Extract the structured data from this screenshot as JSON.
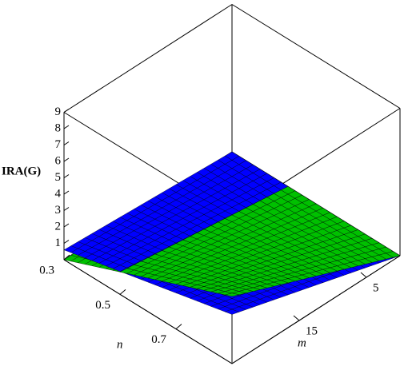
{
  "chart_data": {
    "type": "surface3d",
    "zlabel": "IRA(G)",
    "xlabel": "n",
    "ylabel": "m",
    "xlim": [
      0.3,
      0.9
    ],
    "ylim": [
      0,
      25
    ],
    "zlim": [
      0,
      9
    ],
    "xticks": [
      0.3,
      0.5,
      0.7
    ],
    "yticks": [
      5,
      15
    ],
    "zticks": [
      1,
      2,
      3,
      4,
      5,
      6,
      7,
      8,
      9
    ],
    "series": [
      {
        "color": "#0000ff",
        "z": [
          [
            0,
            0.6
          ],
          [
            0,
            3
          ]
        ]
      },
      {
        "color": "#00c000",
        "z": [
          [
            0,
            0
          ],
          [
            0,
            4.1
          ]
        ]
      }
    ]
  }
}
